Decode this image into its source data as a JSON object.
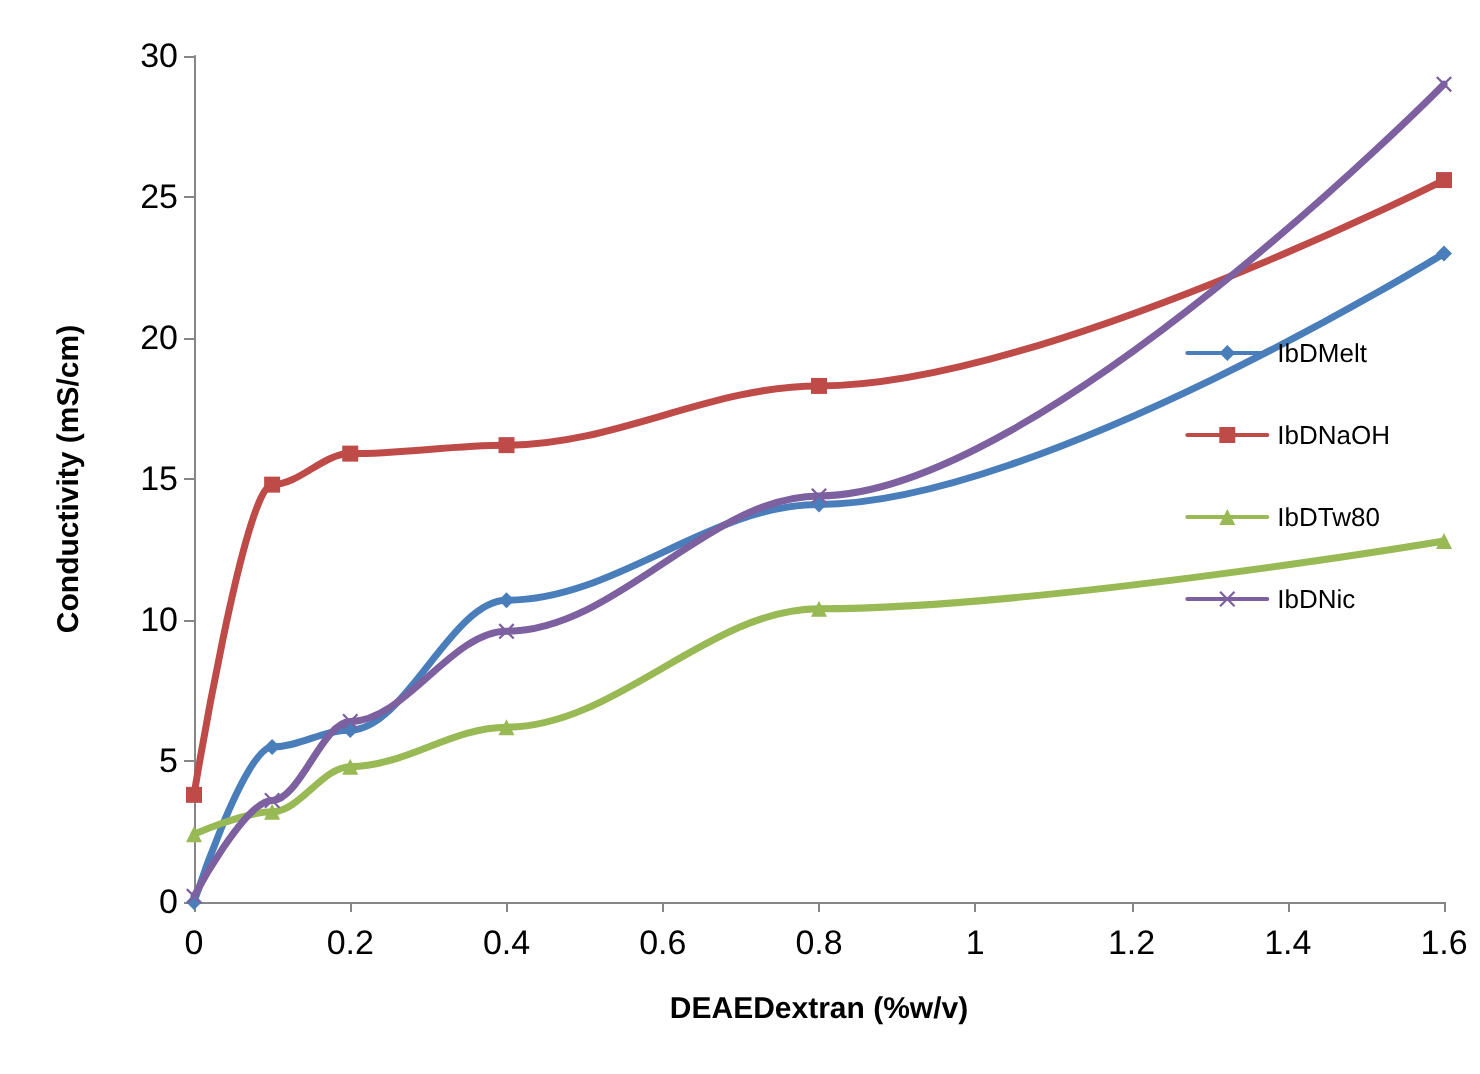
{
  "chart_data": {
    "type": "line",
    "xlabel": "DEAEDextran (%w/v)",
    "ylabel": "Conductivity (mS/cm)",
    "xlim": [
      0,
      1.6
    ],
    "xticks": [
      0,
      0.2,
      0.4,
      0.6,
      0.8,
      1,
      1.2,
      1.4,
      1.6
    ],
    "ylim": [
      0,
      30
    ],
    "yticks": [
      0,
      5,
      10,
      15,
      20,
      25,
      30
    ],
    "x": [
      0,
      0.1,
      0.2,
      0.4,
      0.8,
      1.6
    ],
    "grid": false,
    "legend": "right",
    "series": [
      {
        "name": "IbDMelt",
        "color": "#4a7ebb",
        "marker": "diamond",
        "values": [
          0,
          5.5,
          6.1,
          10.7,
          14.1,
          23
        ]
      },
      {
        "name": "IbDNaOH",
        "color": "#be4b48",
        "marker": "square",
        "values": [
          3.8,
          14.8,
          15.9,
          16.2,
          18.3,
          25.6
        ]
      },
      {
        "name": "IbDTw80",
        "color": "#98b954",
        "marker": "triangle",
        "values": [
          2.4,
          3.2,
          4.8,
          6.2,
          10.4,
          12.8
        ]
      },
      {
        "name": "IbDNic",
        "color": "#7d60a0",
        "marker": "cross",
        "values": [
          0.2,
          3.6,
          6.4,
          9.6,
          14.4,
          29
        ]
      }
    ]
  }
}
